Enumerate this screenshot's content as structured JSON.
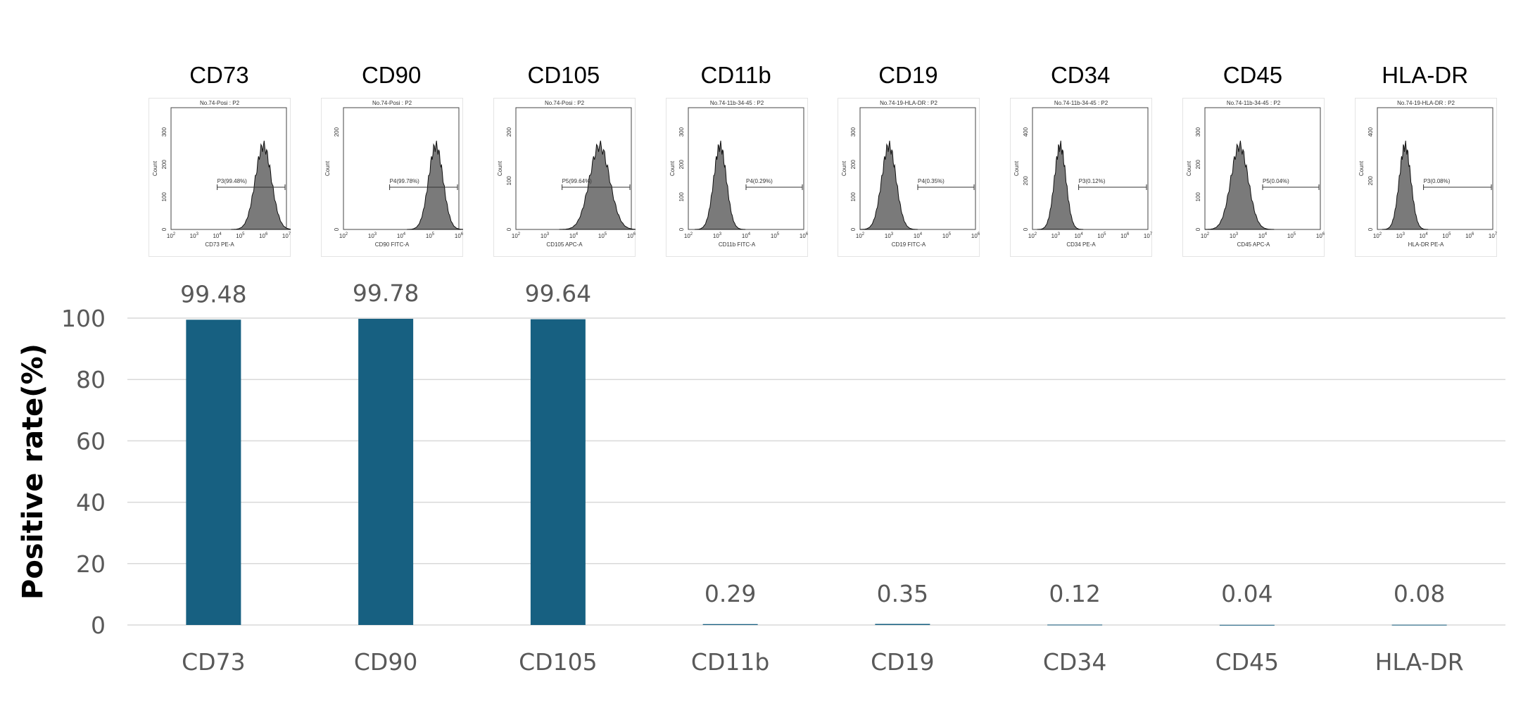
{
  "colors": {
    "bar": "#176081",
    "grid": "#d9d9d9",
    "axis_text": "#595959",
    "histogram_fill": "#7a7a7a"
  },
  "panels": [
    {
      "marker": "CD73",
      "title": "No.74-Posi : P2",
      "xlabel": "CD73 PE-A",
      "gate": "P3(99.48%)",
      "yticks": [
        0,
        100,
        200,
        300
      ],
      "ylabel": "Count",
      "xexp": [
        2,
        3,
        4,
        5,
        6,
        7
      ],
      "peak_log": 6.0,
      "width_log": 0.35
    },
    {
      "marker": "CD90",
      "title": "No.74-Posi : P2",
      "xlabel": "CD90 FITC-A",
      "gate": "P4(99.78%)",
      "yticks": [
        0,
        200
      ],
      "ylabel": "Count",
      "xexp": [
        2,
        3,
        4,
        5,
        6
      ],
      "peak_log": 5.2,
      "width_log": 0.25
    },
    {
      "marker": "CD105",
      "title": "No.74-Posi : P2",
      "xlabel": "CD105 APC-A",
      "gate": "P5(99.64%)",
      "yticks": [
        0,
        100,
        200
      ],
      "ylabel": "Count",
      "xexp": [
        2,
        3,
        4,
        5,
        6
      ],
      "peak_log": 4.9,
      "width_log": 0.35
    },
    {
      "marker": "CD11b",
      "title": "No.74-11b-34-45 : P2",
      "xlabel": "CD11b FITC-A",
      "gate": "P4(0.29%)",
      "yticks": [
        0,
        100,
        200,
        300
      ],
      "ylabel": "Count",
      "xexp": [
        2,
        3,
        4,
        5,
        6
      ],
      "peak_log": 3.1,
      "width_log": 0.22
    },
    {
      "marker": "CD19",
      "title": "No.74-19-HLA-DR : P2",
      "xlabel": "CD19 FITC-A",
      "gate": "P4(0.35%)",
      "yticks": [
        0,
        100,
        200,
        300
      ],
      "ylabel": "Count",
      "xexp": [
        2,
        3,
        4,
        5,
        6
      ],
      "peak_log": 3.0,
      "width_log": 0.25
    },
    {
      "marker": "CD34",
      "title": "No.74-11b-34-45 : P2",
      "xlabel": "CD34 PE-A",
      "gate": "P3(0.12%)",
      "yticks": [
        0,
        200,
        400
      ],
      "ylabel": "Count",
      "xexp": [
        2,
        3,
        4,
        5,
        6,
        7
      ],
      "peak_log": 3.2,
      "width_log": 0.25
    },
    {
      "marker": "CD45",
      "title": "No.74-11b-34-45 : P2",
      "xlabel": "CD45 APC-A",
      "gate": "P5(0.04%)",
      "yticks": [
        0,
        100,
        200,
        300
      ],
      "ylabel": "Count",
      "xexp": [
        2,
        3,
        4,
        5,
        6
      ],
      "peak_log": 3.2,
      "width_log": 0.3
    },
    {
      "marker": "HLA-DR",
      "title": "No.74-19-HLA-DR : P2",
      "xlabel": "HLA-DR PE-A",
      "gate": "P3(0.08%)",
      "yticks": [
        0,
        200,
        400
      ],
      "ylabel": "Count",
      "xexp": [
        2,
        3,
        4,
        5,
        6,
        7
      ],
      "peak_log": 3.2,
      "width_log": 0.25
    }
  ],
  "chart_data": {
    "type": "bar",
    "categories": [
      "CD73",
      "CD90",
      "CD105",
      "CD11b",
      "CD19",
      "CD34",
      "CD45",
      "HLA-DR"
    ],
    "values": [
      99.48,
      99.78,
      99.64,
      0.29,
      0.35,
      0.12,
      0.04,
      0.08
    ],
    "data_labels": [
      "99.48",
      "99.78",
      "99.64",
      "0.29",
      "0.35",
      "0.12",
      "0.04",
      "0.08"
    ],
    "title": "",
    "xlabel": "",
    "ylabel": "Positive rate(%)",
    "ylim": [
      0,
      100
    ],
    "yticks": [
      "0",
      "20",
      "40",
      "60",
      "80",
      "100"
    ],
    "grid": true,
    "legend": "none"
  }
}
